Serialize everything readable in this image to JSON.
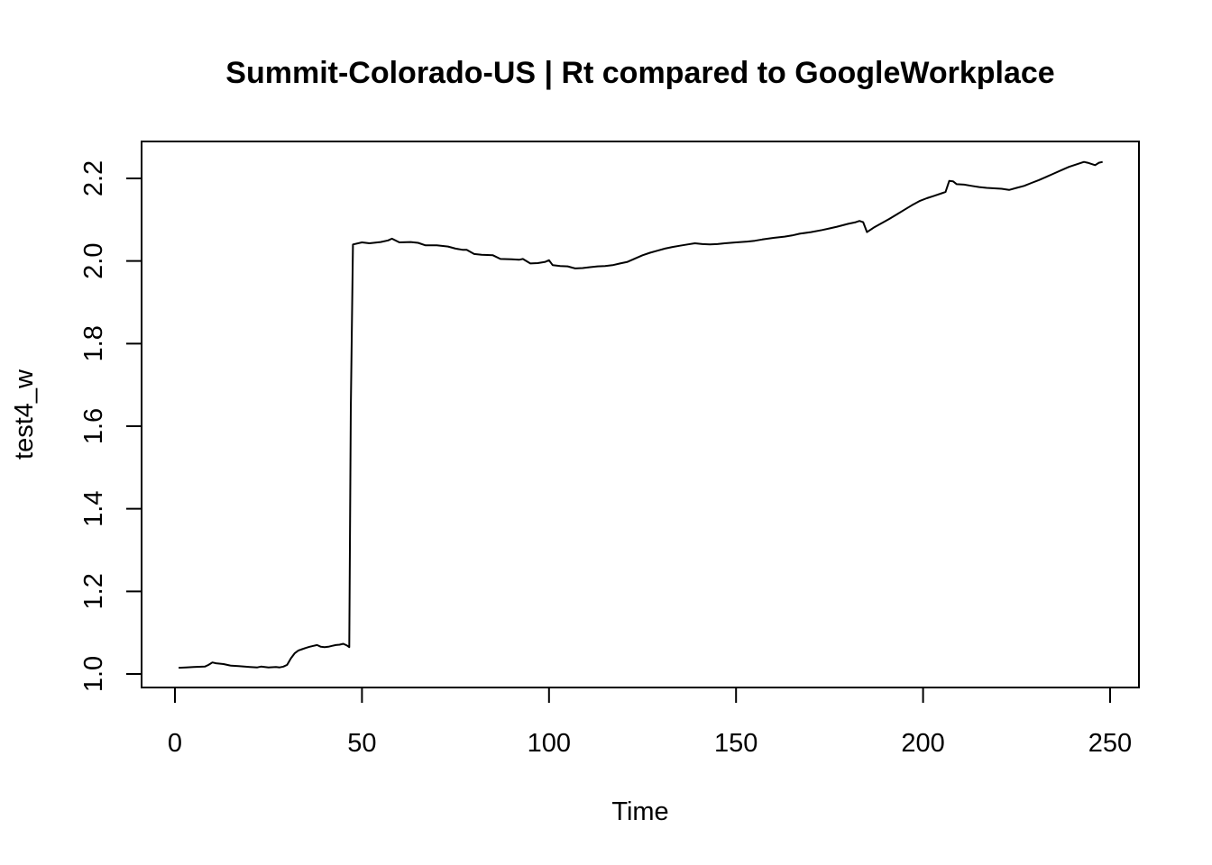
{
  "chart_data": {
    "type": "line",
    "title": "Summit-Colorado-US | Rt compared to GoogleWorkplace",
    "xlabel": "Time",
    "ylabel": "test4_w",
    "xlim": [
      1,
      248
    ],
    "ylim": [
      1.0,
      2.25
    ],
    "x_ticks": [
      0,
      50,
      100,
      150,
      200,
      250
    ],
    "x_tick_labels": [
      "0",
      "50",
      "100",
      "150",
      "200",
      "250"
    ],
    "y_ticks": [
      1.0,
      1.2,
      1.4,
      1.6,
      1.8,
      2.0,
      2.2
    ],
    "y_tick_labels": [
      "1.0",
      "1.2",
      "1.4",
      "1.6",
      "1.8",
      "2.0",
      "2.2"
    ],
    "grid": false,
    "legend": "none",
    "line_color": "#000000",
    "series": [
      {
        "x": [
          1,
          3,
          5,
          8,
          9,
          10,
          11,
          13,
          15,
          17,
          20,
          22,
          23,
          25,
          27,
          28,
          29,
          30,
          31,
          32,
          33,
          34,
          35,
          36,
          37,
          38,
          39,
          40,
          41,
          42,
          43,
          44,
          45,
          46,
          46.6,
          47,
          47.6,
          50,
          52,
          55,
          57,
          58,
          60,
          63,
          65,
          67,
          70,
          73,
          75,
          77,
          78,
          80,
          82,
          85,
          87,
          90,
          92,
          93,
          95,
          97,
          99,
          100,
          101,
          103,
          105,
          107,
          109,
          111,
          113,
          115,
          117,
          119,
          121,
          123,
          125,
          127,
          129,
          131,
          133,
          135,
          137,
          139,
          141,
          143,
          145,
          147,
          150,
          153,
          155,
          157,
          160,
          163,
          165,
          167,
          170,
          173,
          175,
          177,
          180,
          182,
          183,
          184,
          185,
          187,
          189,
          191,
          193,
          195,
          197,
          199,
          201,
          203,
          205,
          206,
          207,
          208,
          209,
          211,
          213,
          215,
          217,
          219,
          221,
          223,
          225,
          227,
          229,
          231,
          233,
          235,
          237,
          239,
          241,
          243,
          244,
          246,
          247,
          248
        ],
        "values": [
          1.015,
          1.016,
          1.017,
          1.018,
          1.022,
          1.028,
          1.026,
          1.024,
          1.02,
          1.019,
          1.017,
          1.016,
          1.018,
          1.016,
          1.017,
          1.016,
          1.018,
          1.022,
          1.038,
          1.05,
          1.057,
          1.06,
          1.063,
          1.066,
          1.068,
          1.07,
          1.066,
          1.065,
          1.066,
          1.068,
          1.07,
          1.071,
          1.073,
          1.069,
          1.065,
          1.64,
          2.04,
          2.045,
          2.043,
          2.046,
          2.05,
          2.054,
          2.045,
          2.046,
          2.044,
          2.038,
          2.038,
          2.035,
          2.03,
          2.027,
          2.027,
          2.017,
          2.015,
          2.014,
          2.005,
          2.004,
          2.003,
          2.005,
          1.994,
          1.995,
          1.998,
          2.002,
          1.99,
          1.988,
          1.987,
          1.982,
          1.983,
          1.985,
          1.987,
          1.988,
          1.99,
          1.994,
          1.998,
          2.006,
          2.014,
          2.02,
          2.025,
          2.03,
          2.034,
          2.037,
          2.04,
          2.043,
          2.041,
          2.04,
          2.041,
          2.043,
          2.045,
          2.047,
          2.049,
          2.052,
          2.056,
          2.059,
          2.062,
          2.066,
          2.07,
          2.075,
          2.079,
          2.083,
          2.09,
          2.094,
          2.097,
          2.094,
          2.07,
          2.082,
          2.092,
          2.102,
          2.113,
          2.124,
          2.135,
          2.145,
          2.152,
          2.158,
          2.164,
          2.167,
          2.194,
          2.193,
          2.186,
          2.185,
          2.182,
          2.179,
          2.177,
          2.176,
          2.175,
          2.172,
          2.177,
          2.182,
          2.189,
          2.196,
          2.204,
          2.212,
          2.22,
          2.228,
          2.234,
          2.24,
          2.238,
          2.232,
          2.238,
          2.24
        ]
      }
    ]
  }
}
